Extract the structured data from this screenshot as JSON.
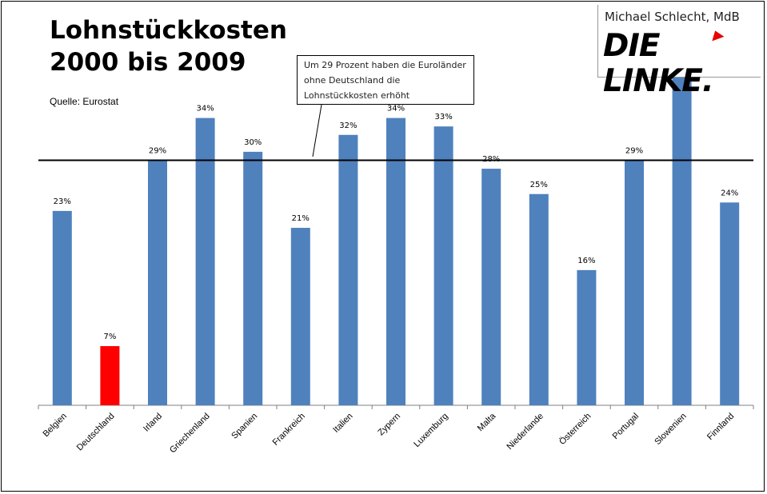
{
  "header": {
    "title": "Lohnstückkosten\n2000 bis 2009",
    "source": "Quelle: Eurostat"
  },
  "annotation": {
    "text": "Um 29 Prozent haben die Euroländer ohne Deutschland die Lohnstückkosten erhöht"
  },
  "logo": {
    "person": "Michael Schlecht, MdB",
    "party": "DIE LINKE.",
    "accent_color": "#e60000"
  },
  "colors": {
    "bar": "#4f81bd",
    "highlight": "#ff0000",
    "reference_line": "#000000"
  },
  "chart_data": {
    "type": "bar",
    "title": "Lohnstückkosten 2000 bis 2009",
    "categories": [
      "Belgien",
      "Deutschland",
      "Irland",
      "Griechenland",
      "Spanien",
      "Frankreich",
      "Italien",
      "Zypern",
      "Luxemburg",
      "Malta",
      "Niederlande",
      "Österreich",
      "Portugal",
      "Slowenien",
      "Finnland"
    ],
    "values": [
      23,
      7,
      29,
      34,
      30,
      21,
      32,
      34,
      33,
      28,
      25,
      16,
      29,
      40,
      24
    ],
    "labels": [
      "23%",
      "7%",
      "29%",
      "34%",
      "30%",
      "21%",
      "32%",
      "34%",
      "33%",
      "28%",
      "25%",
      "16%",
      "29%",
      "",
      "24%"
    ],
    "highlight_category": "Deutschland",
    "reference_line": {
      "value": 29,
      "label": "Um 29 Prozent haben die Euroländer ohne Deutschland die Lohnstückkosten erhöht"
    },
    "ylim": [
      0,
      40
    ],
    "unit": "%",
    "xlabel": "",
    "ylabel": "",
    "grid": false,
    "legend": "none"
  }
}
